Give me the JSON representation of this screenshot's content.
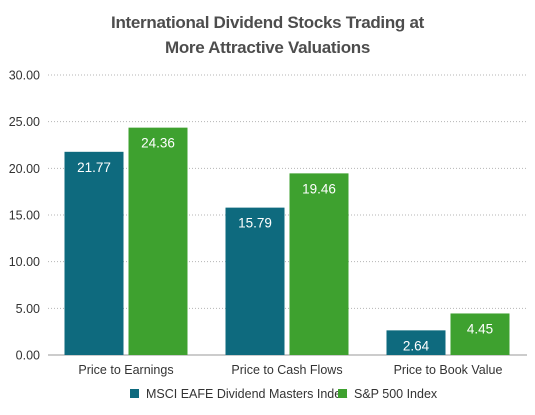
{
  "chart_data": {
    "type": "bar",
    "title_lines": [
      "International Dividend Stocks Trading at",
      "More Attractive Valuations"
    ],
    "categories": [
      "Price to Earnings",
      "Price to Cash Flows",
      "Price to Book Value"
    ],
    "series": [
      {
        "name": "MSCI EAFE Dividend Masters Index",
        "values": [
          21.77,
          15.79,
          2.64
        ],
        "labels": [
          "21.77",
          "15.79",
          "2.64"
        ],
        "color": "#0e6a7e"
      },
      {
        "name": "S&P 500 Index",
        "values": [
          24.36,
          19.46,
          4.45
        ],
        "labels": [
          "24.36",
          "19.46",
          "4.45"
        ],
        "color": "#3ea12f"
      }
    ],
    "ylim": [
      0,
      30
    ],
    "yticks": [
      0,
      5,
      10,
      15,
      20,
      25,
      30
    ],
    "ytick_labels": [
      "0.00",
      "5.00",
      "10.00",
      "15.00",
      "20.00",
      "25.00",
      "30.00"
    ],
    "grid": "horizontal-dotted",
    "legend_position": "bottom-center"
  }
}
